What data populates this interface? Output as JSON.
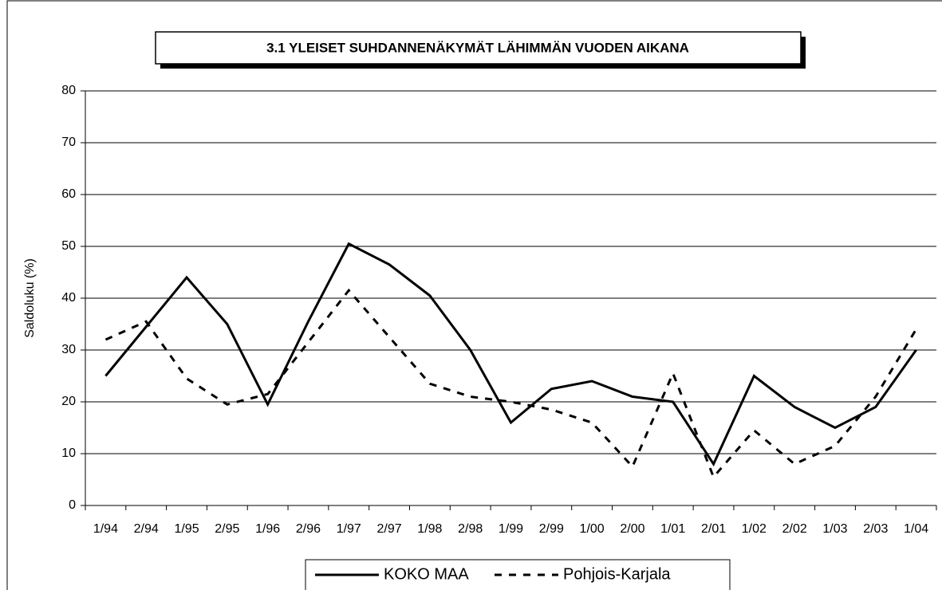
{
  "chart_data": {
    "type": "line",
    "title": "3.1 YLEISET SUHDANNENÄKYMÄT LÄHIMMÄN VUODEN AIKANA",
    "y_label": "Saldoluku (%)",
    "categories": [
      "1/94",
      "2/94",
      "1/95",
      "2/95",
      "1/96",
      "2/96",
      "1/97",
      "2/97",
      "1/98",
      "2/98",
      "1/99",
      "2/99",
      "1/00",
      "2/00",
      "1/01",
      "2/01",
      "1/02",
      "2/02",
      "1/03",
      "2/03",
      "1/04"
    ],
    "series": [
      {
        "name": "KOKO MAA",
        "color": "#000000",
        "dash": "solid",
        "values": [
          25,
          34.5,
          44,
          35,
          19.5,
          35.5,
          50.5,
          46.5,
          40.5,
          30,
          16,
          22.5,
          24,
          21,
          20,
          8,
          25,
          19,
          15,
          19,
          30
        ]
      },
      {
        "name": "Pohjois-Karjala",
        "color": "#000000",
        "dash": "dashed",
        "values": [
          32,
          35.5,
          24.5,
          19.5,
          21.5,
          31.5,
          41.5,
          32.5,
          23.5,
          21,
          20,
          18.5,
          16,
          7.5,
          25.5,
          5.5,
          14.5,
          8,
          11.5,
          21,
          34
        ]
      }
    ],
    "ylim": [
      0,
      80
    ],
    "yticks": [
      0,
      10,
      20,
      30,
      40,
      50,
      60,
      70,
      80
    ],
    "grid": true,
    "legend": "bottom"
  }
}
